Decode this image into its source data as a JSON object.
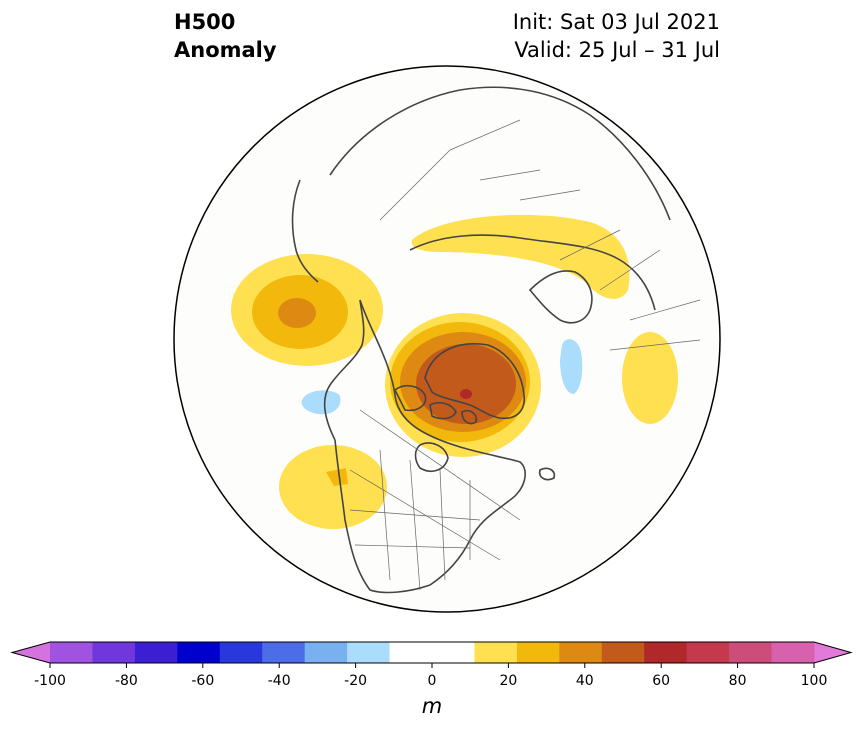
{
  "title": {
    "left_line1": "H500",
    "left_line2": "Anomaly",
    "right_line1": "Init: Sat 03 Jul 2021",
    "right_line2": "Valid: 25 Jul – 31 Jul"
  },
  "map": {
    "projection": "north-polar-stereographic",
    "land_fill": "#fdfdfb",
    "coastline_color": "#444444",
    "anomaly_features": [
      {
        "region": "northeast-pacific",
        "peak_m": 40
      },
      {
        "region": "greenland-canadian-arctic",
        "peak_m": 60
      },
      {
        "region": "northern-russia-siberia",
        "peak_m": 20
      },
      {
        "region": "western-north-america",
        "peak_m": 30
      },
      {
        "region": "central-asia",
        "peak_m": 20
      },
      {
        "region": "gulf-of-alaska-negative",
        "peak_m": -20
      },
      {
        "region": "barents-sea-negative",
        "peak_m": -20
      }
    ]
  },
  "colorbar": {
    "unit": "m",
    "ticks": [
      "-100",
      "-80",
      "-60",
      "-40",
      "-20",
      "0",
      "20",
      "40",
      "60",
      "80",
      "100"
    ],
    "min_color": "#d472e0",
    "max_color": "#e379d8",
    "colors": [
      "#a052e0",
      "#7038dc",
      "#3c1fd2",
      "#0000cd",
      "#2838dc",
      "#4c6ce8",
      "#78b0f0",
      "#aadcfc",
      "#ffffff",
      "#ffffff",
      "#ffe050",
      "#f2b90c",
      "#de8a12",
      "#c25a1c",
      "#b0282a",
      "#c43a4c",
      "#cc4c7a",
      "#d861ae"
    ]
  }
}
